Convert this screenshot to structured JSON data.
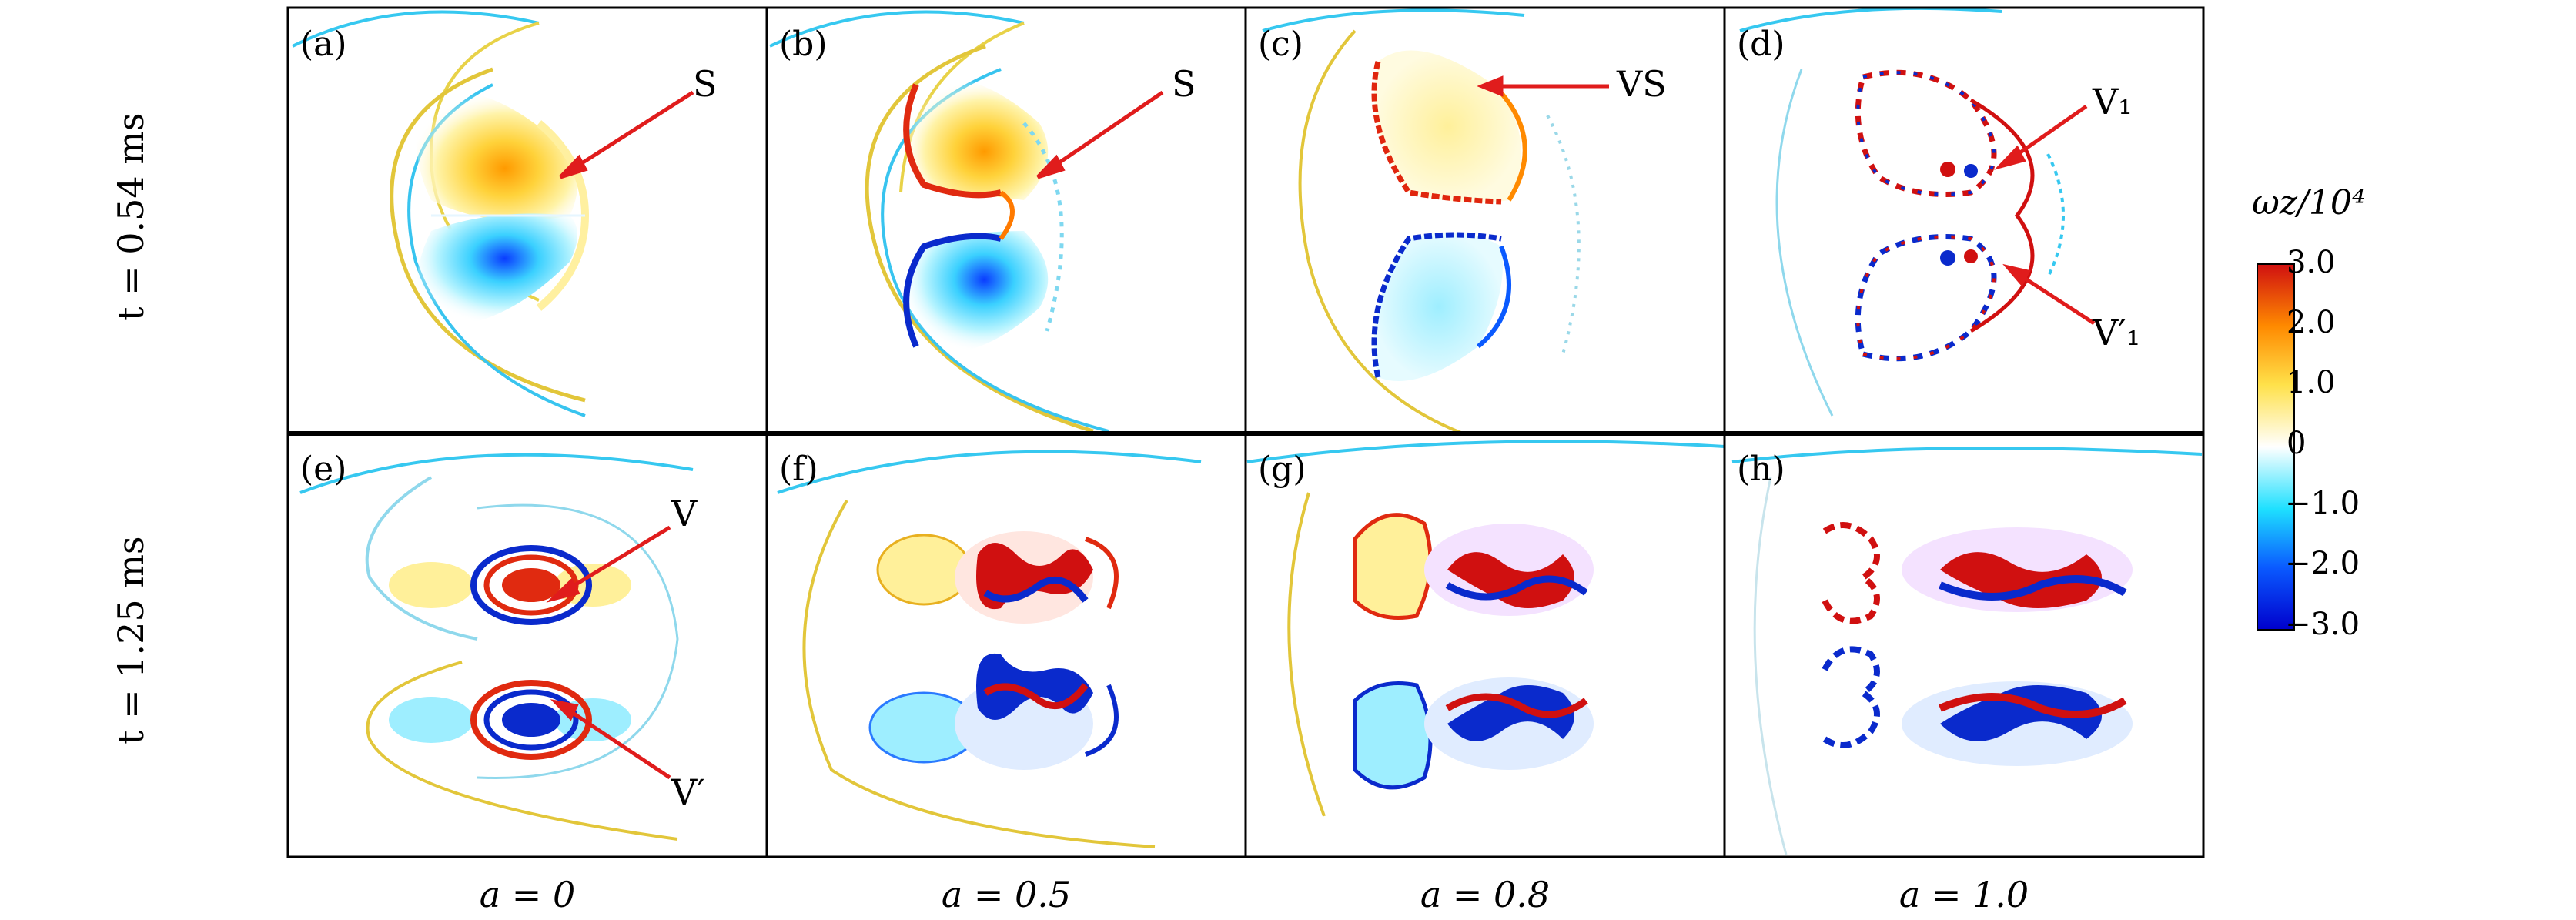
{
  "figure": {
    "panels": [
      {
        "id": "a",
        "label": "(a)",
        "annotations": [
          "S"
        ]
      },
      {
        "id": "b",
        "label": "(b)",
        "annotations": [
          "S"
        ]
      },
      {
        "id": "c",
        "label": "(c)",
        "annotations": [
          "VS"
        ]
      },
      {
        "id": "d",
        "label": "(d)",
        "annotations": [
          "V₁",
          "V′₁"
        ]
      },
      {
        "id": "e",
        "label": "(e)",
        "annotations": [
          "V",
          "V′"
        ]
      },
      {
        "id": "f",
        "label": "(f)",
        "annotations": []
      },
      {
        "id": "g",
        "label": "(g)",
        "annotations": []
      },
      {
        "id": "h",
        "label": "(h)",
        "annotations": []
      }
    ],
    "row_labels": [
      "t = 0.54 ms",
      "t = 1.25 ms"
    ],
    "col_labels": [
      "a = 0",
      "a = 0.5",
      "a = 0.8",
      "a = 1.0"
    ],
    "colorbar": {
      "title": "ωz/10⁴",
      "ticks": [
        "3.0",
        "2.0",
        "1.0",
        "0",
        "−1.0",
        "−2.0",
        "−3.0"
      ],
      "min": -3.0,
      "max": 3.0,
      "colors": [
        "#0000cd",
        "#0a5aff",
        "#1ee0ff",
        "#ffffff",
        "#ffe14a",
        "#ff8a00",
        "#d01010"
      ]
    },
    "annotation_color": "#e01c1c"
  }
}
